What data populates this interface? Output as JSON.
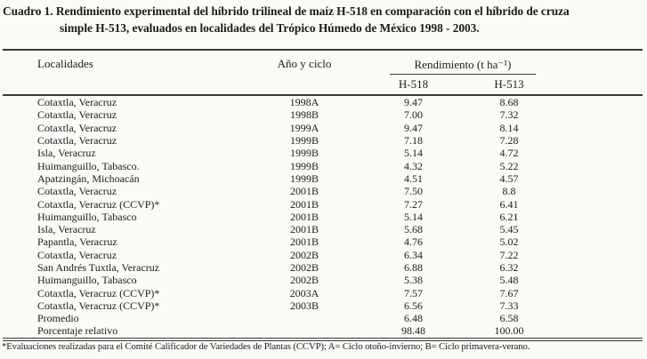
{
  "title": {
    "line1": "Cuadro 1. Rendimiento experimental del híbrido trilineal de maíz H-518 en comparación con el híbrido de cruza",
    "line2": "simple H-513, evaluados en localidades del Trópico Húmedo de México 1998 - 2003."
  },
  "table": {
    "header": {
      "localidades": "Localidades",
      "ano_y_ciclo": "Año y ciclo",
      "rendimiento": "Rendimiento (t ha⁻¹)",
      "col_h518": "H-518",
      "col_h513": "H-513"
    },
    "rows": [
      {
        "localidad": "Cotaxtla, Veracruz",
        "ano_ciclo": "1998A",
        "h518": "9.47",
        "h513": "8.68"
      },
      {
        "localidad": "Cotaxtla, Veracruz",
        "ano_ciclo": "1998B",
        "h518": "7.00",
        "h513": "7.32"
      },
      {
        "localidad": "Cotaxtla, Veracruz",
        "ano_ciclo": "1999A",
        "h518": "9.47",
        "h513": "8.14"
      },
      {
        "localidad": "Cotaxtla, Veracruz",
        "ano_ciclo": "1999B",
        "h518": "7.18",
        "h513": "7.28"
      },
      {
        "localidad": "Isla, Veracruz",
        "ano_ciclo": "1999B",
        "h518": "5.14",
        "h513": "4.72"
      },
      {
        "localidad": "Huimanguillo, Tabasco.",
        "ano_ciclo": "1999B",
        "h518": "4.32",
        "h513": "5.22"
      },
      {
        "localidad": "Apatzingán, Michoacán",
        "ano_ciclo": "1999B",
        "h518": "4.51",
        "h513": "4.57"
      },
      {
        "localidad": "Cotaxtla, Veracruz",
        "ano_ciclo": "2001B",
        "h518": "7.50",
        "h513": "8.8"
      },
      {
        "localidad": "Cotaxtla, Veracruz (CCVP)*",
        "ano_ciclo": "2001B",
        "h518": "7.27",
        "h513": "6.41"
      },
      {
        "localidad": "Huimanguillo, Tabasco",
        "ano_ciclo": "2001B",
        "h518": "5.14",
        "h513": "6.21"
      },
      {
        "localidad": "Isla, Veracruz",
        "ano_ciclo": "2001B",
        "h518": "5.68",
        "h513": "5.45"
      },
      {
        "localidad": "Papantla, Veracruz",
        "ano_ciclo": "2001B",
        "h518": "4.76",
        "h513": "5.02"
      },
      {
        "localidad": "Cotaxtla, Veracruz",
        "ano_ciclo": "2002B",
        "h518": "6.34",
        "h513": "7.22"
      },
      {
        "localidad": "San Andrés Tuxtla, Veracruz",
        "ano_ciclo": "2002B",
        "h518": "6.88",
        "h513": "6.32"
      },
      {
        "localidad": "Huimanguillo, Tabasco",
        "ano_ciclo": "2002B",
        "h518": "5.38",
        "h513": "5.48"
      },
      {
        "localidad": "Cotaxtla, Veracruz (CCVP)*",
        "ano_ciclo": "2003A",
        "h518": "7.57",
        "h513": "7.67"
      },
      {
        "localidad": "Cotaxtla, Veracruz (CCVP)*",
        "ano_ciclo": "2003B",
        "h518": "6.56",
        "h513": "7.33"
      },
      {
        "localidad": "Promedio",
        "ano_ciclo": "",
        "h518": "6.48",
        "h513": "6.58"
      },
      {
        "localidad": "Porcentaje relativo",
        "ano_ciclo": "",
        "h518": "98.48",
        "h513": "100.00"
      }
    ]
  },
  "footnote": "*Evaluaciones realizadas para el Comité Calificador de Variedades de Plantas (CCVP); A= Ciclo otoño-invierno; B= Ciclo primavera-verano.",
  "colors": {
    "background": "#fbfaf7",
    "text": "#1b1b1b",
    "rule": "#3b3b3b"
  }
}
